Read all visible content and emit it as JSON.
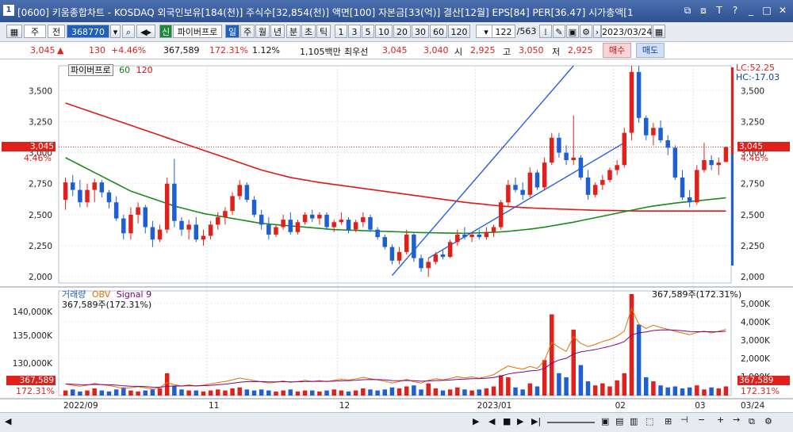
{
  "window": {
    "number": "1",
    "title": "[0600] 키움종합차트 - KOSDAQ 외국인보유[184(천)] 주식수[32,854(천)] 액면[100] 자본금[33(억)] 결산[12월] EPS[84] PER[36.47] 시가총액[1"
  },
  "toolbar": {
    "period": "주",
    "market": "전",
    "code": "368770",
    "badge": "신",
    "stock_name": "파이버프로",
    "intervals": [
      "일",
      "주",
      "월",
      "년",
      "분",
      "초",
      "틱"
    ],
    "minutes": [
      "1",
      "3",
      "5",
      "10",
      "20",
      "30",
      "60",
      "120"
    ],
    "count": "122",
    "total": "/563",
    "date": "2023/03/24"
  },
  "quote": {
    "price": "3,045",
    "arrow": "▲",
    "change": "130",
    "change_pct": "+4.46%",
    "volume": "367,589",
    "volume_pct": "172.31%",
    "turnover": "1.12%",
    "amount": "1,105백만",
    "best_ask_label": "최우선",
    "best_ask": "3,045",
    "best_bid": "3,040",
    "open_label": "시",
    "open": "2,925",
    "high_label": "고",
    "high": "3,050",
    "low_label": "저",
    "low": "2,925",
    "buy": "매수",
    "sell": "매도"
  },
  "price_panel": {
    "legend_name": "파이버프로",
    "ma1": "60",
    "ma2": "120",
    "lc": "LC:52.25",
    "hc": "HC:-17.03",
    "current": "3,045",
    "current_pct": "4.46%",
    "ticks": [
      "3,500",
      "3,250",
      "3,000",
      "2,750",
      "2,500",
      "2,250",
      "2,000"
    ]
  },
  "volume_panel": {
    "legend1": "거래량",
    "legend2": "OBV",
    "legend3": "Signal 9",
    "left_note": "367,589주(172.31%)",
    "right_note": "367,589주(172.31%)",
    "left_ticks": [
      "140,000K",
      "135,000K",
      "130,000K"
    ],
    "right_ticks": [
      "5,000K",
      "4,000K",
      "3,000K",
      "2,000K",
      "1,000K"
    ],
    "current": "367,589",
    "current_pct": "172.31%"
  },
  "xaxis": {
    "labels": [
      "2022/09",
      "11",
      "12",
      "2023/01",
      "02",
      "03"
    ],
    "right_date": "03/24"
  },
  "chart_data": {
    "type": "candlestick",
    "ylim": [
      1950,
      3700
    ],
    "ohlc": [
      [
        2620,
        2800,
        2540,
        2760
      ],
      [
        2760,
        2820,
        2650,
        2700
      ],
      [
        2700,
        2780,
        2560,
        2600
      ],
      [
        2600,
        2750,
        2560,
        2700
      ],
      [
        2700,
        2790,
        2600,
        2760
      ],
      [
        2760,
        2780,
        2640,
        2680
      ],
      [
        2680,
        2700,
        2550,
        2600
      ],
      [
        2600,
        2650,
        2450,
        2470
      ],
      [
        2470,
        2500,
        2300,
        2350
      ],
      [
        2350,
        2560,
        2300,
        2500
      ],
      [
        2500,
        2600,
        2430,
        2560
      ],
      [
        2560,
        2580,
        2350,
        2400
      ],
      [
        2400,
        2450,
        2240,
        2300
      ],
      [
        2300,
        2420,
        2280,
        2380
      ],
      [
        2380,
        2800,
        2350,
        2750
      ],
      [
        2750,
        2950,
        2400,
        2450
      ],
      [
        2450,
        2480,
        2330,
        2380
      ],
      [
        2380,
        2460,
        2300,
        2420
      ],
      [
        2420,
        2480,
        2280,
        2300
      ],
      [
        2300,
        2380,
        2250,
        2330
      ],
      [
        2330,
        2450,
        2300,
        2420
      ],
      [
        2420,
        2520,
        2380,
        2480
      ],
      [
        2480,
        2560,
        2420,
        2530
      ],
      [
        2530,
        2680,
        2500,
        2650
      ],
      [
        2650,
        2780,
        2620,
        2740
      ],
      [
        2740,
        2760,
        2600,
        2620
      ],
      [
        2620,
        2650,
        2480,
        2500
      ],
      [
        2500,
        2540,
        2380,
        2420
      ],
      [
        2420,
        2480,
        2300,
        2340
      ],
      [
        2340,
        2420,
        2320,
        2400
      ],
      [
        2400,
        2500,
        2380,
        2460
      ],
      [
        2460,
        2520,
        2340,
        2360
      ],
      [
        2360,
        2460,
        2340,
        2440
      ],
      [
        2440,
        2520,
        2420,
        2500
      ],
      [
        2500,
        2540,
        2440,
        2470
      ],
      [
        2470,
        2520,
        2420,
        2500
      ],
      [
        2500,
        2520,
        2380,
        2400
      ],
      [
        2400,
        2460,
        2360,
        2440
      ],
      [
        2440,
        2520,
        2420,
        2460
      ],
      [
        2460,
        2480,
        2350,
        2380
      ],
      [
        2380,
        2460,
        2360,
        2440
      ],
      [
        2440,
        2520,
        2400,
        2480
      ],
      [
        2480,
        2500,
        2360,
        2380
      ],
      [
        2380,
        2400,
        2300,
        2320
      ],
      [
        2320,
        2340,
        2220,
        2240
      ],
      [
        2240,
        2260,
        2100,
        2130
      ],
      [
        2130,
        2240,
        2100,
        2200
      ],
      [
        2200,
        2380,
        2180,
        2340
      ],
      [
        2340,
        2350,
        2120,
        2150
      ],
      [
        2150,
        2180,
        2040,
        2070
      ],
      [
        2070,
        2150,
        2000,
        2120
      ],
      [
        2120,
        2200,
        2100,
        2180
      ],
      [
        2180,
        2220,
        2140,
        2160
      ],
      [
        2160,
        2300,
        2150,
        2280
      ],
      [
        2280,
        2380,
        2250,
        2340
      ],
      [
        2340,
        2400,
        2300,
        2320
      ],
      [
        2320,
        2360,
        2280,
        2340
      ],
      [
        2340,
        2380,
        2300,
        2320
      ],
      [
        2320,
        2400,
        2300,
        2360
      ],
      [
        2360,
        2420,
        2320,
        2400
      ],
      [
        2400,
        2620,
        2380,
        2600
      ],
      [
        2600,
        2780,
        2560,
        2740
      ],
      [
        2740,
        2800,
        2680,
        2700
      ],
      [
        2700,
        2760,
        2620,
        2660
      ],
      [
        2660,
        2880,
        2640,
        2840
      ],
      [
        2840,
        2860,
        2700,
        2720
      ],
      [
        2720,
        2960,
        2700,
        2920
      ],
      [
        2920,
        3160,
        2900,
        3120
      ],
      [
        3120,
        3160,
        2960,
        3000
      ],
      [
        3000,
        3060,
        2900,
        2940
      ],
      [
        2940,
        3300,
        2900,
        2960
      ],
      [
        2960,
        2980,
        2780,
        2800
      ],
      [
        2800,
        2860,
        2620,
        2660
      ],
      [
        2660,
        2760,
        2640,
        2740
      ],
      [
        2740,
        2820,
        2700,
        2780
      ],
      [
        2780,
        2880,
        2760,
        2860
      ],
      [
        2860,
        2940,
        2820,
        2900
      ],
      [
        2900,
        3200,
        2880,
        3160
      ],
      [
        3160,
        3700,
        3100,
        3650
      ],
      [
        3650,
        3700,
        3240,
        3280
      ],
      [
        3280,
        3300,
        3100,
        3140
      ],
      [
        3140,
        3240,
        3060,
        3200
      ],
      [
        3200,
        3260,
        3080,
        3100
      ],
      [
        3100,
        3140,
        2980,
        3040
      ],
      [
        3040,
        3060,
        2780,
        2800
      ],
      [
        2800,
        2860,
        2620,
        2640
      ],
      [
        2640,
        2700,
        2560,
        2600
      ],
      [
        2600,
        2900,
        2580,
        2860
      ],
      [
        2860,
        3080,
        2840,
        2940
      ],
      [
        2940,
        2980,
        2860,
        2900
      ],
      [
        2900,
        2960,
        2820,
        2920
      ],
      [
        2925,
        3050,
        2925,
        3045
      ]
    ],
    "ma60": [
      2960,
      2930,
      2900,
      2870,
      2840,
      2810,
      2780,
      2750,
      2720,
      2690,
      2670,
      2650,
      2630,
      2610,
      2590,
      2570,
      2555,
      2540,
      2525,
      2510,
      2500,
      2490,
      2480,
      2470,
      2460,
      2450,
      2440,
      2430,
      2425,
      2420,
      2415,
      2410,
      2405,
      2400,
      2395,
      2390,
      2385,
      2380,
      2378,
      2376,
      2374,
      2372,
      2370,
      2368,
      2366,
      2364,
      2362,
      2360,
      2358,
      2356,
      2355,
      2354,
      2353,
      2352,
      2351,
      2350,
      2352,
      2354,
      2356,
      2358,
      2362,
      2366,
      2372,
      2378,
      2384,
      2392,
      2400,
      2410,
      2420,
      2430,
      2440,
      2452,
      2464,
      2476,
      2488,
      2500,
      2512,
      2524,
      2536,
      2548,
      2560,
      2570,
      2578,
      2586,
      2594,
      2600,
      2606,
      2612,
      2618,
      2624,
      2630,
      2636
    ],
    "ma120": [
      3400,
      3380,
      3360,
      3340,
      3320,
      3300,
      3280,
      3260,
      3240,
      3220,
      3200,
      3180,
      3160,
      3140,
      3120,
      3100,
      3080,
      3060,
      3040,
      3020,
      3000,
      2980,
      2960,
      2940,
      2920,
      2900,
      2880,
      2860,
      2845,
      2830,
      2815,
      2800,
      2790,
      2780,
      2770,
      2760,
      2752,
      2744,
      2736,
      2728,
      2720,
      2712,
      2704,
      2696,
      2688,
      2680,
      2672,
      2664,
      2656,
      2648,
      2640,
      2632,
      2624,
      2616,
      2608,
      2600,
      2594,
      2588,
      2582,
      2576,
      2570,
      2566,
      2562,
      2558,
      2555,
      2552,
      2550,
      2548,
      2546,
      2544,
      2542,
      2540,
      2538,
      2536,
      2535,
      2534,
      2533,
      2532,
      2531,
      2530,
      2530,
      2530,
      2530,
      2530,
      2530,
      2530,
      2530,
      2530,
      2530,
      2530,
      2530,
      2530
    ],
    "volume": [
      5,
      6,
      4,
      5,
      7,
      5,
      4,
      6,
      8,
      5,
      4,
      5,
      6,
      7,
      22,
      9,
      6,
      5,
      5,
      4,
      5,
      6,
      5,
      7,
      8,
      6,
      5,
      6,
      5,
      4,
      5,
      6,
      4,
      5,
      5,
      4,
      5,
      6,
      5,
      4,
      5,
      7,
      6,
      5,
      6,
      8,
      7,
      9,
      10,
      6,
      12,
      7,
      5,
      6,
      8,
      6,
      5,
      6,
      7,
      9,
      20,
      18,
      8,
      6,
      12,
      9,
      35,
      80,
      22,
      18,
      65,
      30,
      14,
      10,
      12,
      9,
      15,
      22,
      100,
      70,
      18,
      14,
      10,
      8,
      9,
      7,
      8,
      10,
      6,
      8,
      7,
      9
    ]
  }
}
